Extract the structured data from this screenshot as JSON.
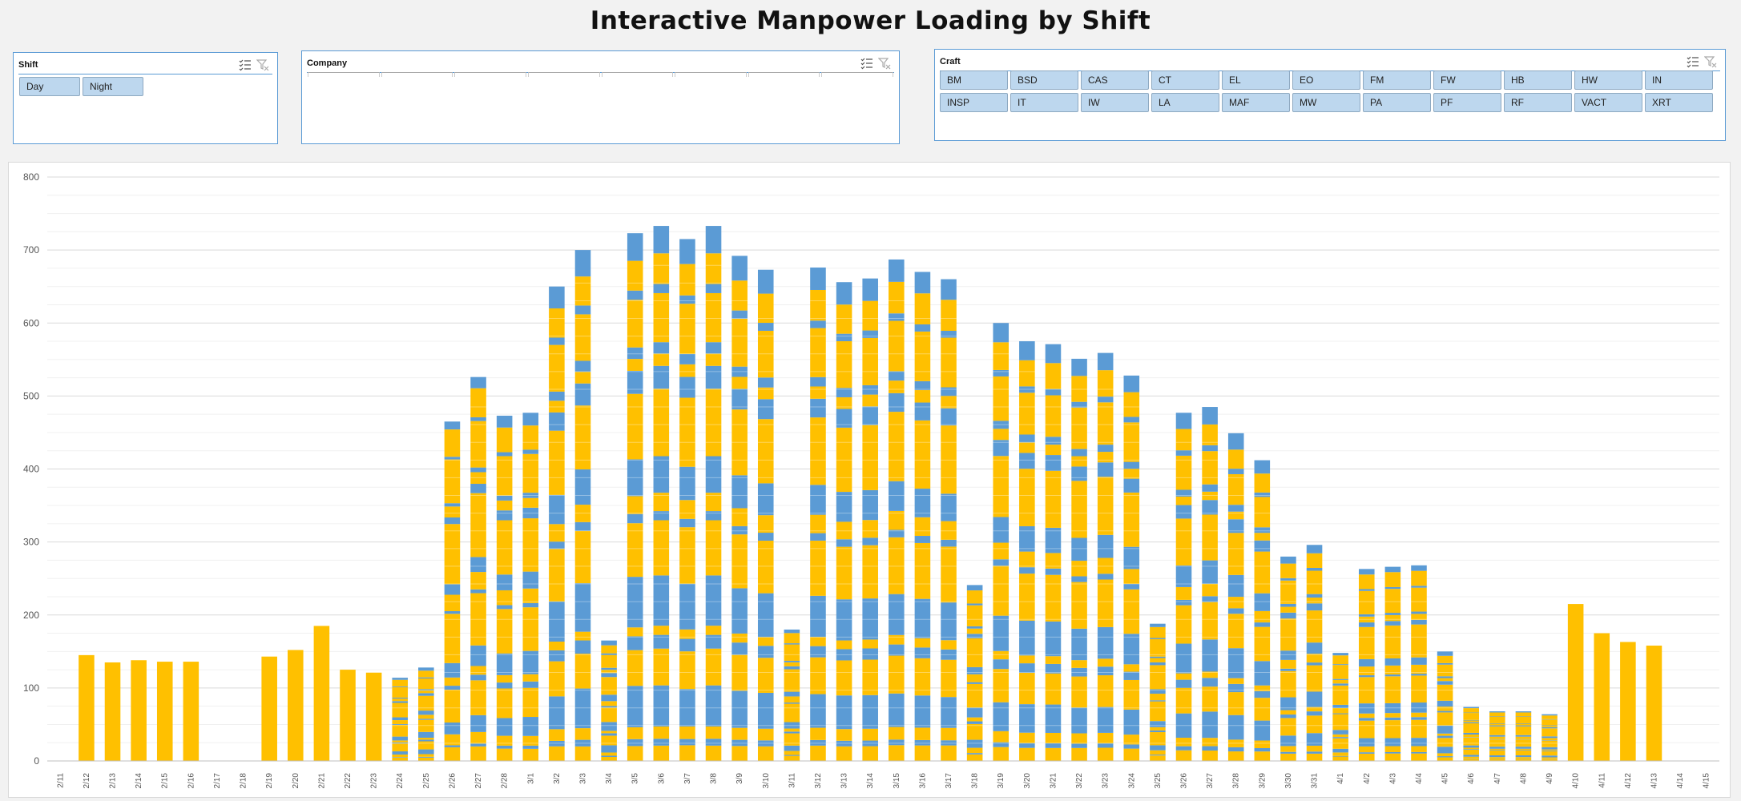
{
  "title": "Interactive Manpower Loading by Shift",
  "colors": {
    "day": "#ffc000",
    "night": "#5b9bd5",
    "slicer_fill": "#bdd7ee",
    "slicer_border": "#5b9bd5"
  },
  "slicers": {
    "shift": {
      "title": "Shift",
      "items": [
        "Day",
        "Night"
      ]
    },
    "company": {
      "title": "Company",
      "items": []
    },
    "craft": {
      "title": "Craft",
      "items": [
        "BM",
        "BSD",
        "CAS",
        "CT",
        "EL",
        "EO",
        "FM",
        "FW",
        "HB",
        "HW",
        "IN",
        "INSP",
        "IT",
        "IW",
        "LA",
        "MAF",
        "MW",
        "PA",
        "PF",
        "RF",
        "VACT",
        "XRT"
      ]
    },
    "icons": [
      "multi-select-icon",
      "clear-filter-icon"
    ]
  },
  "chart_data": {
    "type": "bar",
    "stacked": true,
    "ylim": [
      0,
      800
    ],
    "yticks": [
      0,
      100,
      200,
      300,
      400,
      500,
      600,
      700,
      800
    ],
    "grid": true,
    "categories": [
      "2/11",
      "2/12",
      "2/13",
      "2/14",
      "2/15",
      "2/16",
      "2/17",
      "2/18",
      "2/19",
      "2/20",
      "2/21",
      "2/22",
      "2/23",
      "2/24",
      "2/25",
      "2/26",
      "2/27",
      "2/28",
      "3/1",
      "3/2",
      "3/3",
      "3/4",
      "3/5",
      "3/6",
      "3/7",
      "3/8",
      "3/9",
      "3/10",
      "3/11",
      "3/12",
      "3/13",
      "3/14",
      "3/15",
      "3/16",
      "3/17",
      "3/18",
      "3/19",
      "3/20",
      "3/21",
      "3/22",
      "3/23",
      "3/24",
      "3/25",
      "3/26",
      "3/27",
      "3/28",
      "3/29",
      "3/30",
      "3/31",
      "4/1",
      "4/2",
      "4/3",
      "4/4",
      "4/5",
      "4/6",
      "4/7",
      "4/8",
      "4/9",
      "4/10",
      "4/11",
      "4/12",
      "4/13",
      "4/14",
      "4/15"
    ],
    "series": [
      {
        "name": "Day",
        "values": [
          0,
          145,
          135,
          138,
          136,
          136,
          0,
          0,
          143,
          152,
          185,
          125,
          121,
          90,
          92,
          375,
          398,
          338,
          332,
          400,
          398,
          110,
          408,
          420,
          430,
          420,
          410,
          400,
          140,
          420,
          400,
          405,
          432,
          425,
          425,
          180,
          380,
          358,
          355,
          355,
          362,
          338,
          150,
          292,
          285,
          262,
          260,
          200,
          200,
          120,
          200,
          205,
          205,
          100,
          60,
          55,
          55,
          50,
          215,
          175,
          163,
          158,
          0,
          0
        ]
      },
      {
        "name": "Night",
        "values": [
          0,
          0,
          0,
          0,
          0,
          0,
          0,
          0,
          0,
          0,
          0,
          0,
          0,
          24,
          36,
          90,
          128,
          135,
          145,
          250,
          302,
          55,
          315,
          313,
          285,
          313,
          282,
          273,
          40,
          256,
          256,
          256,
          255,
          245,
          235,
          61,
          220,
          217,
          216,
          196,
          197,
          190,
          38,
          185,
          200,
          187,
          152,
          80,
          96,
          28,
          63,
          61,
          63,
          50,
          14,
          13,
          13,
          14,
          0,
          0,
          0,
          0,
          0,
          0
        ]
      }
    ]
  }
}
